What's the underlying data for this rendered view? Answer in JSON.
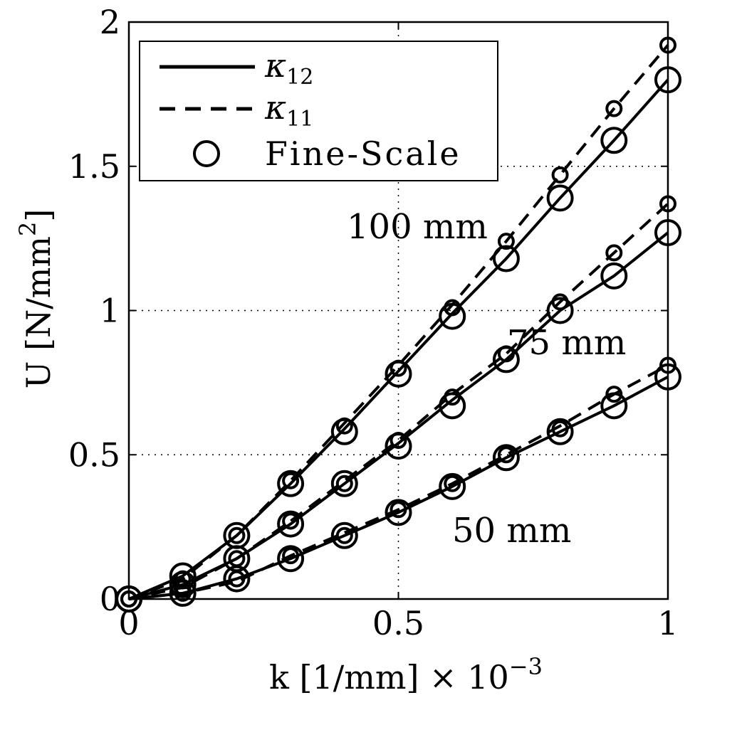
{
  "chart_data": {
    "type": "line",
    "xlabel": "k  [1/mm] × 10",
    "xlabel_exp": "−3",
    "ylabel": "U  [N/mm",
    "ylabel_exp": "2",
    "ylabel_end": "]",
    "xlim": [
      0,
      1
    ],
    "ylim": [
      0,
      2
    ],
    "xticks": [
      "0",
      "0.5",
      "1"
    ],
    "yticks": [
      "0",
      "0.5",
      "1",
      "1.5",
      "2"
    ],
    "grid": true,
    "legend_position": "top-left",
    "legend": [
      {
        "label": "κ",
        "sub": "12",
        "style": "solid"
      },
      {
        "label": "κ",
        "sub": "11",
        "style": "dashed"
      },
      {
        "label": "Fine-Scale",
        "style": "circle"
      }
    ],
    "annotations": [
      "100 mm",
      "75 mm",
      "50 mm"
    ],
    "x": [
      0,
      0.1,
      0.2,
      0.3,
      0.4,
      0.5,
      0.6,
      0.7,
      0.8,
      0.9,
      1.0
    ],
    "groups": [
      {
        "annotation": "100 mm",
        "kappa12": [
          0,
          0.08,
          0.22,
          0.4,
          0.59,
          0.79,
          0.99,
          1.18,
          1.39,
          1.59,
          1.8
        ],
        "kappa11": [
          0,
          0.07,
          0.22,
          0.41,
          0.61,
          0.81,
          1.02,
          1.24,
          1.47,
          1.7,
          1.92
        ],
        "fine_large": [
          0,
          0.08,
          0.22,
          0.4,
          0.58,
          0.78,
          0.98,
          1.18,
          1.39,
          1.59,
          1.8
        ],
        "fine_small": [
          0,
          0.07,
          0.22,
          0.41,
          0.6,
          0.8,
          1.01,
          1.24,
          1.47,
          1.7,
          1.92
        ]
      },
      {
        "annotation": "75 mm",
        "kappa12": [
          0,
          0.05,
          0.14,
          0.26,
          0.4,
          0.54,
          0.69,
          0.83,
          1.0,
          1.12,
          1.27
        ],
        "kappa11": [
          0,
          0.04,
          0.14,
          0.27,
          0.41,
          0.55,
          0.71,
          0.85,
          1.03,
          1.2,
          1.37
        ],
        "fine_large": [
          0,
          0.05,
          0.14,
          0.26,
          0.4,
          0.53,
          0.67,
          0.83,
          1.0,
          1.12,
          1.27
        ],
        "fine_small": [
          0,
          0.04,
          0.14,
          0.27,
          0.4,
          0.55,
          0.7,
          0.85,
          1.03,
          1.2,
          1.37
        ]
      },
      {
        "annotation": "50 mm",
        "kappa12": [
          0,
          0.02,
          0.07,
          0.14,
          0.22,
          0.3,
          0.39,
          0.49,
          0.58,
          0.67,
          0.77
        ],
        "kappa11": [
          0,
          0.02,
          0.06,
          0.15,
          0.23,
          0.31,
          0.4,
          0.5,
          0.6,
          0.71,
          0.81
        ],
        "fine_large": [
          0,
          0.02,
          0.07,
          0.14,
          0.22,
          0.3,
          0.39,
          0.49,
          0.58,
          0.67,
          0.77
        ],
        "fine_small": [
          0,
          0.02,
          0.07,
          0.15,
          0.22,
          0.31,
          0.4,
          0.5,
          0.59,
          0.71,
          0.81
        ]
      }
    ]
  }
}
